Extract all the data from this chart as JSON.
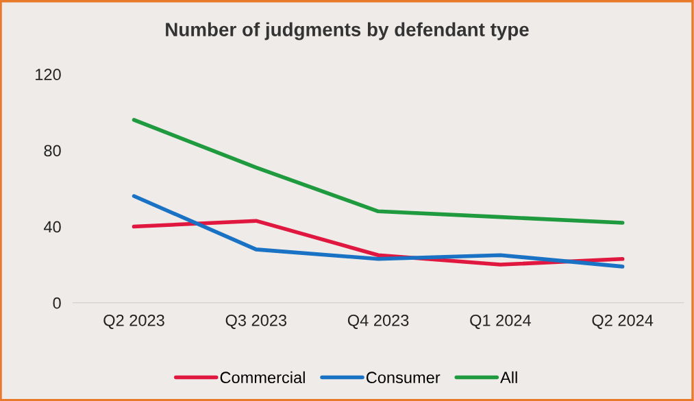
{
  "chart_data": {
    "type": "line",
    "title": "Number of judgments by defendant type",
    "categories": [
      "Q2 2023",
      "Q3 2023",
      "Q4 2023",
      "Q1 2024",
      "Q2 2024"
    ],
    "series": [
      {
        "name": "Commercial",
        "color": "#e0173f",
        "values": [
          40,
          43,
          25,
          20,
          23
        ]
      },
      {
        "name": "Consumer",
        "color": "#1a72c4",
        "values": [
          56,
          28,
          23,
          25,
          19
        ]
      },
      {
        "name": "All",
        "color": "#1f9a3e",
        "values": [
          96,
          71,
          48,
          45,
          42
        ]
      }
    ],
    "ylim": [
      0,
      120
    ],
    "yticks": [
      0,
      40,
      80,
      120
    ],
    "grid": false,
    "legend": "bottom",
    "marker": "none",
    "line_style": "solid"
  }
}
